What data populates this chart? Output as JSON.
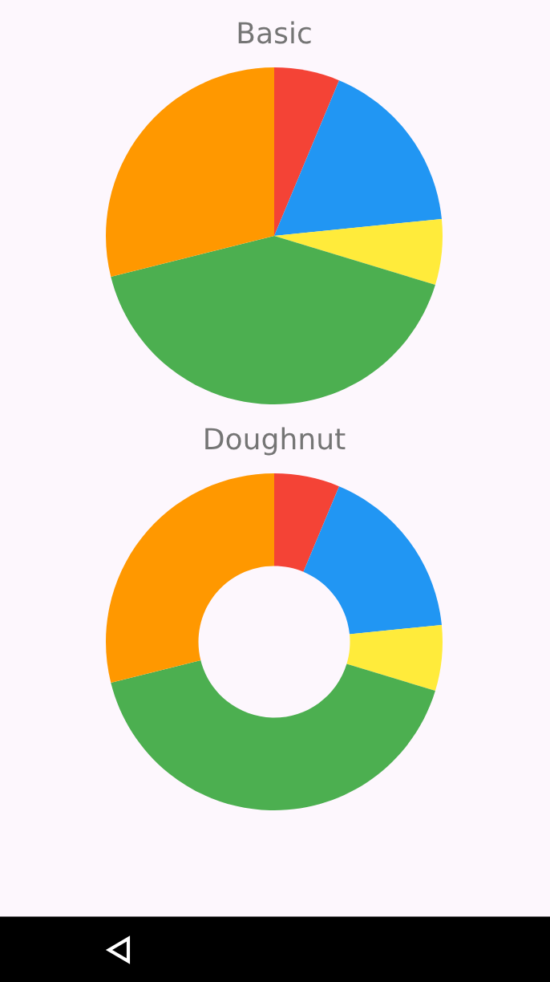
{
  "chart_data": [
    {
      "type": "pie",
      "title": "Basic",
      "categories": [
        null,
        null,
        null,
        null,
        null
      ],
      "values": [
        6.3,
        17.1,
        6.3,
        41.4,
        28.9
      ],
      "colors": [
        "#f44336",
        "#2196f3",
        "#ffeb3b",
        "#4caf50",
        "#ff9800"
      ]
    },
    {
      "type": "donut",
      "title": "Doughnut",
      "categories": [
        null,
        null,
        null,
        null,
        null
      ],
      "values": [
        6.3,
        17.1,
        6.3,
        41.4,
        28.9
      ],
      "colors": [
        "#f44336",
        "#2196f3",
        "#ffeb3b",
        "#4caf50",
        "#ff9800"
      ]
    }
  ]
}
